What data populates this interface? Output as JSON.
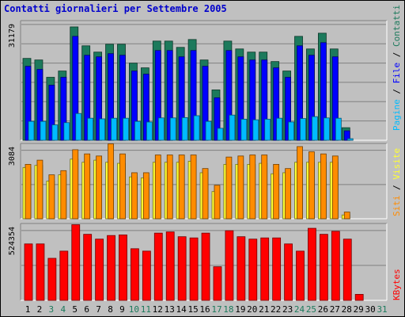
{
  "colors": {
    "background": "#c0c0c0",
    "plot_bg": "#c0c0c0",
    "title": "#0000cc",
    "pages": "#00bbff",
    "files": "#0000ff",
    "hits": "#1c7a5c",
    "sites": "#ff8c00",
    "visits": "#ffff33",
    "kbytes": "#ff0000",
    "weekday_label": "#000000",
    "weekend_label": "#1c7a5c"
  },
  "chart_data": {
    "type": "bar",
    "title": "Contatti giornalieri per Settembre 2005",
    "categories": [
      "1",
      "2",
      "3",
      "4",
      "5",
      "6",
      "7",
      "8",
      "9",
      "10",
      "11",
      "12",
      "13",
      "14",
      "15",
      "16",
      "17",
      "18",
      "19",
      "20",
      "21",
      "22",
      "23",
      "24",
      "25",
      "26",
      "27",
      "28",
      "29",
      "30",
      "31"
    ],
    "weekend_days": [
      "3",
      "4",
      "10",
      "11",
      "17",
      "18",
      "24",
      "25",
      "31"
    ],
    "grid": true,
    "panels": [
      {
        "id": "hits",
        "tick_label": "31179",
        "ylim": [
          0,
          38000
        ],
        "legend": [
          {
            "text": "Pagine",
            "color": "#00bbff"
          },
          {
            "text": " / ",
            "color": "#000000"
          },
          {
            "text": "File",
            "color": "#0000ff"
          },
          {
            "text": " / ",
            "color": "#000000"
          },
          {
            "text": "Contatti",
            "color": "#1c7a5c"
          }
        ],
        "series": [
          {
            "name": "Contatti",
            "color": "#1c7a5c",
            "values": [
              26000,
              25500,
              20000,
              22000,
              36000,
              30000,
              28000,
              30500,
              30500,
              24500,
              23000,
              31500,
              31500,
              29500,
              32000,
              25500,
              16000,
              31500,
              29000,
              28000,
              28000,
              25000,
              22000,
              33000,
              29000,
              34000,
              29000,
              4000,
              0,
              0,
              0
            ]
          },
          {
            "name": "File",
            "color": "#0000ff",
            "values": [
              23500,
              22500,
              17500,
              20000,
              33000,
              27000,
              26500,
              27500,
              27000,
              22000,
              21000,
              28500,
              28500,
              26500,
              28500,
              23500,
              13500,
              28500,
              26500,
              25500,
              25500,
              23000,
              20000,
              30000,
              27000,
              31000,
              26500,
              3000,
              0,
              0,
              0
            ]
          },
          {
            "name": "Pagine",
            "color": "#00bbff",
            "values": [
              6000,
              6000,
              4900,
              5600,
              8500,
              7000,
              6800,
              7000,
              7000,
              6000,
              5800,
              7100,
              7100,
              7200,
              7800,
              6000,
              3800,
              8000,
              6700,
              6500,
              6700,
              7000,
              5800,
              6900,
              7500,
              7100,
              7000,
              500,
              0,
              0,
              0
            ]
          }
        ]
      },
      {
        "id": "visits",
        "tick_label": "3084",
        "ylim": [
          0,
          3600
        ],
        "legend": [
          {
            "text": "Siti",
            "color": "#ff8c00"
          },
          {
            "text": " / ",
            "color": "#000000"
          },
          {
            "text": "Visite",
            "color": "#ffff33"
          }
        ],
        "series": [
          {
            "name": "Visite",
            "color": "#ffff33",
            "values": [
              2450,
              2550,
              1800,
              2100,
              2850,
              2700,
              2800,
              2700,
              2650,
              2000,
              1950,
              2700,
              2700,
              2700,
              2750,
              2200,
              1300,
              2600,
              2600,
              2600,
              2650,
              2150,
              2200,
              2700,
              2700,
              2700,
              2700,
              180,
              0,
              0,
              0
            ]
          },
          {
            "name": "Siti",
            "color": "#ff8c00",
            "values": [
              2600,
              2800,
              2100,
              2300,
              3300,
              3100,
              3000,
              3580,
              3100,
              2200,
              2200,
              3050,
              3050,
              3050,
              3050,
              2400,
              1600,
              2950,
              3000,
              3050,
              3050,
              2600,
              2400,
              3450,
              3200,
              3100,
              3000,
              320,
              0,
              0,
              0
            ]
          }
        ]
      },
      {
        "id": "kbytes",
        "tick_label": "524354",
        "ylim": [
          0,
          640000
        ],
        "legend": [
          {
            "text": "KBytes",
            "color": "#ff0000"
          }
        ],
        "series": [
          {
            "name": "KBytes",
            "color": "#ff0000",
            "values": [
              470000,
              470000,
              350000,
              410000,
              630000,
              550000,
              510000,
              540000,
              545000,
              430000,
              410000,
              560000,
              570000,
              530000,
              520000,
              560000,
              280000,
              580000,
              530000,
              510000,
              520000,
              520000,
              470000,
              410000,
              600000,
              550000,
              575000,
              510000,
              50000,
              0,
              0
            ]
          }
        ]
      }
    ]
  }
}
